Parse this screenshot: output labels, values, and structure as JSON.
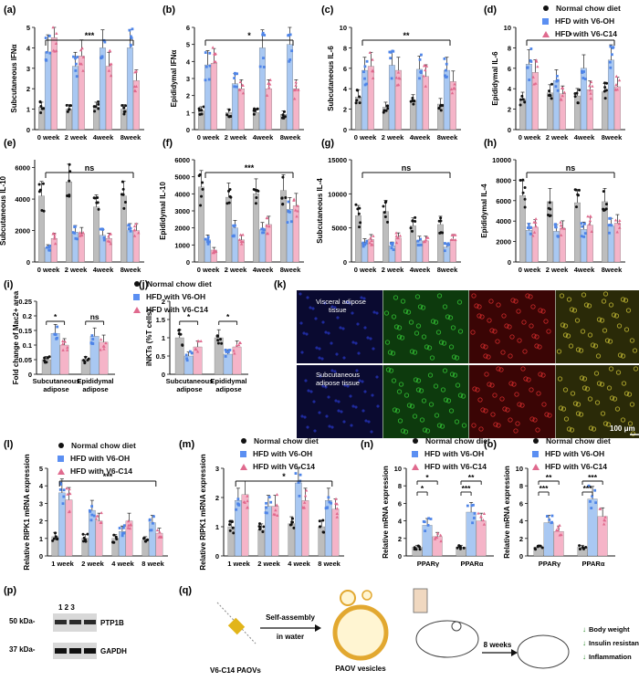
{
  "colors": {
    "normal": "#bdbdbd",
    "oh": "#a9c8f2",
    "c14": "#f5b4c8",
    "normal_pt": "#111111",
    "oh_pt": "#4f85e8",
    "c14_pt": "#e06a8e",
    "axis": "#111111"
  },
  "legend_top": {
    "items": [
      "Normal chow diet",
      "HFD with V6-OH",
      "HFD with V6-C14"
    ]
  },
  "legend_ij": {
    "items": [
      "Normal chow diet",
      "HFD with V6-OH",
      "HFD with V6-C14"
    ]
  },
  "legend_l": {
    "items": [
      "Normal chow diet",
      "HFD with V6-OH",
      "HFD with V6-C14"
    ]
  },
  "legend_m": {
    "items": [
      "Normal chow diet",
      "HFD with V6-OH",
      "HFD with V6-C14"
    ]
  },
  "legend_n": {
    "items": [
      "Normal chow diet",
      "HFD with V6-OH",
      "HFD with V6-C14"
    ]
  },
  "legend_o": {
    "items": [
      "Normal chow diet",
      "HFD with V6-OH",
      "HFD with V6-C14"
    ]
  },
  "chart_data": [
    {
      "panel": "(a)",
      "type": "bar",
      "ylabel": "Subcutaneous IFNα",
      "categories": [
        "0 week",
        "2 week",
        "4week",
        "8week"
      ],
      "yticks": [
        0,
        1,
        2,
        3,
        4,
        5
      ],
      "ylim": [
        0,
        5
      ],
      "series": [
        {
          "name": "Normal chow diet",
          "values": [
            1.1,
            1.0,
            1.1,
            1.0
          ]
        },
        {
          "name": "HFD with V6-OH",
          "values": [
            3.8,
            3.1,
            4.0,
            4.0
          ]
        },
        {
          "name": "HFD with V6-C14",
          "values": [
            4.5,
            3.6,
            3.1,
            2.4
          ]
        }
      ],
      "sig": {
        "label": "***",
        "from": 0,
        "to": 3
      }
    },
    {
      "panel": "(b)",
      "type": "bar",
      "ylabel": "Epididymal IFNα",
      "categories": [
        "0 week",
        "2 week",
        "4week",
        "8week"
      ],
      "yticks": [
        0,
        1,
        2,
        3,
        4,
        5,
        6
      ],
      "ylim": [
        0,
        6
      ],
      "series": [
        {
          "name": "Normal chow diet",
          "values": [
            1.1,
            1.0,
            1.0,
            0.9
          ]
        },
        {
          "name": "HFD with V6-OH",
          "values": [
            3.8,
            2.7,
            4.8,
            5.0
          ]
        },
        {
          "name": "HFD with V6-C14",
          "values": [
            3.9,
            2.4,
            2.4,
            2.4
          ]
        }
      ],
      "sig": {
        "label": "*",
        "from": 0,
        "to": 3
      }
    },
    {
      "panel": "(c)",
      "type": "bar",
      "ylabel": "Subcutaneous IL-6",
      "categories": [
        "0 week",
        "2 week",
        "4week",
        "8week"
      ],
      "yticks": [
        0,
        2,
        4,
        6,
        8,
        10
      ],
      "ylim": [
        0,
        10
      ],
      "series": [
        {
          "name": "Normal chow diet",
          "values": [
            3.2,
            2.2,
            2.8,
            2.5
          ]
        },
        {
          "name": "HFD with V6-OH",
          "values": [
            5.8,
            6.3,
            5.9,
            5.8
          ]
        },
        {
          "name": "HFD with V6-C14",
          "values": [
            6.2,
            5.8,
            5.2,
            4.7
          ]
        }
      ],
      "sig": {
        "label": "**",
        "from": 0,
        "to": 3
      }
    },
    {
      "panel": "(d)",
      "type": "bar",
      "ylabel": "Epididymal IL-6",
      "categories": [
        "0 week",
        "2 week",
        "4week",
        "8week"
      ],
      "yticks": [
        0,
        2,
        4,
        6,
        8,
        10
      ],
      "ylim": [
        0,
        10
      ],
      "series": [
        {
          "name": "Normal chow diet",
          "values": [
            3.0,
            3.6,
            3.3,
            3.7
          ]
        },
        {
          "name": "HFD with V6-OH",
          "values": [
            6.4,
            4.8,
            6.0,
            6.8
          ]
        },
        {
          "name": "HFD with V6-C14",
          "values": [
            5.6,
            3.5,
            3.9,
            4.2
          ]
        }
      ],
      "sig": {
        "label": "*",
        "from": 0,
        "to": 3
      }
    },
    {
      "panel": "(e)",
      "type": "bar",
      "ylabel": "Subcutaneous IL-10",
      "categories": [
        "0 week",
        "2 week",
        "4week",
        "8week"
      ],
      "yticks": [
        0,
        2000,
        4000,
        6000
      ],
      "ylim": [
        0,
        6500
      ],
      "series": [
        {
          "name": "Normal chow diet",
          "values": [
            4200,
            5100,
            3500,
            4200
          ]
        },
        {
          "name": "HFD with V6-OH",
          "values": [
            900,
            1900,
            1700,
            2000
          ]
        },
        {
          "name": "HFD with V6-C14",
          "values": [
            1500,
            1800,
            1500,
            2000
          ]
        }
      ],
      "sig": {
        "label": "ns",
        "from": 0,
        "to": 3
      }
    },
    {
      "panel": "(f)",
      "type": "bar",
      "ylabel": "Epididymal IL-10",
      "categories": [
        "0 week",
        "2 week",
        "4week",
        "8week"
      ],
      "yticks": [
        0,
        1000,
        2000,
        3000,
        4000,
        5000,
        6000
      ],
      "ylim": [
        0,
        6000
      ],
      "series": [
        {
          "name": "Normal chow diet",
          "values": [
            4400,
            3800,
            4000,
            4200
          ]
        },
        {
          "name": "HFD with V6-OH",
          "values": [
            1300,
            2000,
            1900,
            3100
          ]
        },
        {
          "name": "HFD with V6-C14",
          "values": [
            700,
            1300,
            2200,
            3300
          ]
        }
      ],
      "sig": {
        "label": "***",
        "from": 0,
        "to": 3
      }
    },
    {
      "panel": "(g)",
      "type": "bar",
      "ylabel": "Subcutaneous IL-4",
      "categories": [
        "0 week",
        "2 week",
        "4week",
        "8week"
      ],
      "yticks": [
        0,
        5000,
        10000,
        15000
      ],
      "ylim": [
        0,
        15000
      ],
      "series": [
        {
          "name": "Normal chow diet",
          "values": [
            6800,
            7400,
            5300,
            5500
          ]
        },
        {
          "name": "HFD with V6-OH",
          "values": [
            2800,
            2400,
            3100,
            2200
          ]
        },
        {
          "name": "HFD with V6-C14",
          "values": [
            3300,
            3500,
            3100,
            3300
          ]
        }
      ],
      "sig": {
        "label": "ns",
        "from": 0,
        "to": 3
      }
    },
    {
      "panel": "(h)",
      "type": "bar",
      "ylabel": "Epididymal IL-4",
      "categories": [
        "0 week",
        "2 week",
        "4week",
        "8week"
      ],
      "yticks": [
        0,
        2000,
        4000,
        6000,
        8000,
        10000
      ],
      "ylim": [
        0,
        10000
      ],
      "series": [
        {
          "name": "Normal chow diet",
          "values": [
            6500,
            5900,
            5800,
            5900
          ]
        },
        {
          "name": "HFD with V6-OH",
          "values": [
            3100,
            3000,
            3200,
            3500
          ]
        },
        {
          "name": "HFD with V6-C14",
          "values": [
            3400,
            3300,
            3600,
            3800
          ]
        }
      ],
      "sig": {
        "label": "ns",
        "from": 0,
        "to": 3
      }
    },
    {
      "panel": "(i)",
      "type": "bar",
      "ylabel": "Fold change of Mac2+ area",
      "categories": [
        "Subcutaneous adipose",
        "Epididymal adipose"
      ],
      "yticks": [
        0.0,
        0.05,
        0.1,
        0.15,
        0.2,
        0.25
      ],
      "ylim": [
        0,
        0.25
      ],
      "series": [
        {
          "name": "Normal chow diet",
          "values": [
            0.05,
            0.05
          ]
        },
        {
          "name": "HFD with V6-OH",
          "values": [
            0.14,
            0.13
          ]
        },
        {
          "name": "HFD with V6-C14",
          "values": [
            0.1,
            0.11
          ]
        }
      ],
      "sig": [
        {
          "label": "*",
          "group": 0
        },
        {
          "label": "ns",
          "group": 1
        }
      ]
    },
    {
      "panel": "(j)",
      "type": "bar",
      "ylabel": "iNKTs (%T cells)",
      "categories": [
        "Subcutaneous adipose",
        "Epididymal adipose"
      ],
      "yticks": [
        0.0,
        0.5,
        1.0,
        1.5,
        2.0
      ],
      "ylim": [
        0,
        2.0
      ],
      "series": [
        {
          "name": "Normal chow diet",
          "values": [
            1.0,
            1.0
          ]
        },
        {
          "name": "HFD with V6-OH",
          "values": [
            0.5,
            0.55
          ]
        },
        {
          "name": "HFD with V6-C14",
          "values": [
            0.75,
            0.75
          ]
        }
      ],
      "sig": [
        {
          "label": "*",
          "group": 0
        },
        {
          "label": "*",
          "group": 1
        }
      ]
    },
    {
      "panel": "(l)",
      "type": "bar",
      "ylabel": "Relative RIPK1 mRNA expression",
      "categories": [
        "1 week",
        "2 week",
        "4 week",
        "8 week"
      ],
      "yticks": [
        0,
        1,
        2,
        3,
        4,
        5
      ],
      "ylim": [
        0,
        5
      ],
      "series": [
        {
          "name": "Normal chow diet",
          "values": [
            1.1,
            1.0,
            1.0,
            0.9
          ]
        },
        {
          "name": "HFD with V6-OH",
          "values": [
            3.6,
            2.6,
            1.4,
            1.9
          ]
        },
        {
          "name": "HFD with V6-C14",
          "values": [
            3.2,
            2.0,
            2.0,
            1.3
          ]
        }
      ],
      "sig": {
        "label": "***",
        "from": 0,
        "to": 3
      }
    },
    {
      "panel": "(m)",
      "type": "bar",
      "ylabel": "Relative RIPK1 mRNA expression",
      "categories": [
        "1 week",
        "2 week",
        "4 week",
        "8 week"
      ],
      "yticks": [
        0,
        1,
        2,
        3
      ],
      "ylim": [
        0,
        3
      ],
      "series": [
        {
          "name": "Normal chow diet",
          "values": [
            1.0,
            0.9,
            1.1,
            1.0
          ]
        },
        {
          "name": "HFD with V6-OH",
          "values": [
            1.9,
            1.7,
            2.5,
            1.9
          ]
        },
        {
          "name": "HFD with V6-C14",
          "values": [
            2.1,
            1.7,
            1.9,
            1.6
          ]
        }
      ],
      "sig": {
        "label": "*",
        "from": 0,
        "to": 3
      }
    },
    {
      "panel": "(n)",
      "type": "bar",
      "ylabel": "Relative mRNA expression",
      "categories": [
        "PPARγ",
        "PPARα"
      ],
      "yticks": [
        0,
        2,
        4,
        6,
        8,
        10
      ],
      "ylim": [
        0,
        10
      ],
      "series": [
        {
          "name": "Normal chow diet",
          "values": [
            1.0,
            1.0
          ]
        },
        {
          "name": "HFD with V6-OH",
          "values": [
            3.5,
            5.0
          ]
        },
        {
          "name": "HFD with V6-C14",
          "values": [
            2.2,
            4.0
          ]
        }
      ],
      "sig": [
        {
          "group": 0,
          "pairs": [
            [
              "*",
              0,
              1
            ],
            [
              "*",
              0,
              2
            ]
          ]
        },
        {
          "group": 1,
          "pairs": [
            [
              "***",
              0,
              1
            ],
            [
              "**",
              0,
              2
            ]
          ]
        }
      ]
    },
    {
      "panel": "(o)",
      "type": "bar",
      "ylabel": "Relative mRNA expression",
      "categories": [
        "PPARγ",
        "PPARα"
      ],
      "yticks": [
        0,
        2,
        4,
        6,
        8,
        10
      ],
      "ylim": [
        0,
        10
      ],
      "series": [
        {
          "name": "Normal chow diet",
          "values": [
            1.0,
            1.0
          ]
        },
        {
          "name": "HFD with V6-OH",
          "values": [
            3.8,
            6.5
          ]
        },
        {
          "name": "HFD with V6-C14",
          "values": [
            2.8,
            4.5
          ]
        }
      ],
      "sig": [
        {
          "group": 0,
          "pairs": [
            [
              "***",
              0,
              1
            ],
            [
              "**",
              0,
              2
            ]
          ]
        },
        {
          "group": 1,
          "pairs": [
            [
              "***",
              0,
              1
            ],
            [
              "***",
              0,
              2
            ]
          ]
        }
      ]
    }
  ],
  "panels": {
    "a": "(a)",
    "b": "(b)",
    "c": "(c)",
    "d": "(d)",
    "e": "(e)",
    "f": "(f)",
    "g": "(g)",
    "h": "(h)",
    "i": "(i)",
    "j": "(j)",
    "k": "(k)",
    "l": "(l)",
    "m": "(m)",
    "n": "(n)",
    "o": "(o)",
    "p": "(p)",
    "q": "(q)"
  },
  "microscopy": {
    "row1": "Visceral adipose tissue",
    "row2": "Subcutaneous adipose tissue",
    "scale": "100 μm"
  },
  "western": {
    "lanes": "1  2  3",
    "marker1": "50 kDa-",
    "marker2": "37 kDa-",
    "protein1": "PTP1B",
    "protein2": "GAPDH"
  },
  "scheme": {
    "molecule": "V6-C14 PAOVs",
    "step1": "Self-assembly in water",
    "vesicle": "PAOV vesicles",
    "duration": "8 weeks",
    "outcomes": [
      "Body weight",
      "Insulin resistance",
      "Inflammation"
    ]
  }
}
